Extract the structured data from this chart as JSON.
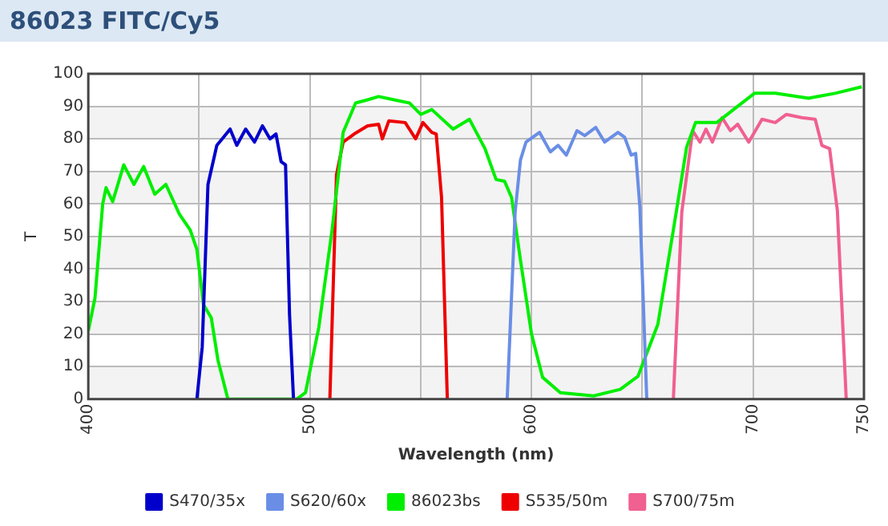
{
  "chart_data": {
    "type": "line",
    "title": "86023 FITC/Cy5",
    "xlabel": "Wavelength (nm)",
    "ylabel": "T",
    "xlim": [
      400,
      750
    ],
    "xticks": [
      400,
      {
        "value": 450,
        "label": null
      },
      500,
      {
        "value": 550,
        "label": null
      },
      600,
      {
        "value": 650,
        "label": null
      },
      700,
      750
    ],
    "ylim": [
      0,
      100
    ],
    "yticks": [
      0,
      10,
      20,
      30,
      40,
      50,
      60,
      70,
      80,
      90,
      100
    ],
    "grid": true,
    "legend": "bottom",
    "marker": "none",
    "line_style": "solid",
    "series": [
      {
        "name": "S470/35x",
        "color": "#0000cc",
        "x": [
          449,
          451.4,
          454,
          458,
          460.4,
          464,
          467,
          471,
          475,
          478.6,
          482,
          484.7,
          487,
          489,
          490.8,
          492.6
        ],
        "values": [
          0,
          16,
          66,
          78,
          80,
          83,
          78,
          83,
          79,
          84,
          80,
          81.5,
          73,
          72,
          26,
          0
        ]
      },
      {
        "name": "S620/60x",
        "color": "#6a8ee6",
        "x": [
          589,
          592.6,
          595,
          597.5,
          603.6,
          608.5,
          612,
          615.7,
          620.5,
          624,
          629,
          633,
          639,
          642,
          645,
          647,
          648.9,
          652
        ],
        "values": [
          0,
          57.5,
          73.5,
          79,
          82,
          76,
          78,
          75,
          82.5,
          81,
          83.5,
          79,
          82,
          80.5,
          75,
          75.5,
          59,
          0
        ]
      },
      {
        "name": "86023bs",
        "color": "#00ee00",
        "x": [
          400,
          403,
          406.5,
          408,
          411,
          416,
          420.6,
          425,
          430,
          435,
          441,
          446,
          449,
          452,
          455.5,
          458.5,
          463,
          490.7,
          494,
          498,
          504,
          510,
          515,
          520.6,
          526,
          531,
          538,
          545,
          550,
          555,
          564.6,
          572,
          579,
          584,
          587.8,
          591,
          594.8,
          600,
          605,
          613,
          628,
          640,
          648,
          657,
          664,
          670,
          674,
          683.6,
          693,
          700.6,
          710,
          725,
          737,
          749
        ],
        "values": [
          21,
          31,
          60,
          65,
          60.7,
          72,
          66,
          71.5,
          63,
          66,
          57,
          52,
          46,
          29,
          25,
          12,
          0,
          0,
          0,
          2,
          22,
          52,
          82,
          91,
          92,
          93,
          92,
          91,
          87.5,
          89,
          83,
          86,
          77,
          67.5,
          67,
          62,
          43.7,
          20,
          6.7,
          2,
          1,
          3,
          7,
          23,
          52,
          77.5,
          85,
          85,
          90,
          94,
          94,
          92.5,
          94,
          96
        ]
      },
      {
        "name": "S535/50m",
        "color": "#ee0000",
        "x": [
          509,
          512,
          515,
          520,
          526,
          531,
          532.7,
          535.6,
          543,
          547.7,
          551,
          555,
          557,
          559.4,
          562
        ],
        "values": [
          0,
          69,
          79,
          81.5,
          84,
          84.5,
          80,
          85.5,
          85,
          80,
          85,
          82,
          81.5,
          62,
          0
        ]
      },
      {
        "name": "S700/75m",
        "color": "#f06090",
        "x": [
          664,
          667.8,
          672.7,
          676,
          678.7,
          681.6,
          686,
          689.7,
          693,
          698,
          704,
          710,
          715,
          722,
          728,
          731,
          734.5,
          738,
          742
        ],
        "values": [
          0,
          57.5,
          82.5,
          79,
          83,
          79,
          86.5,
          82.5,
          84.5,
          79,
          86,
          85,
          87.5,
          86.5,
          86,
          78,
          77,
          58,
          0
        ]
      }
    ]
  }
}
